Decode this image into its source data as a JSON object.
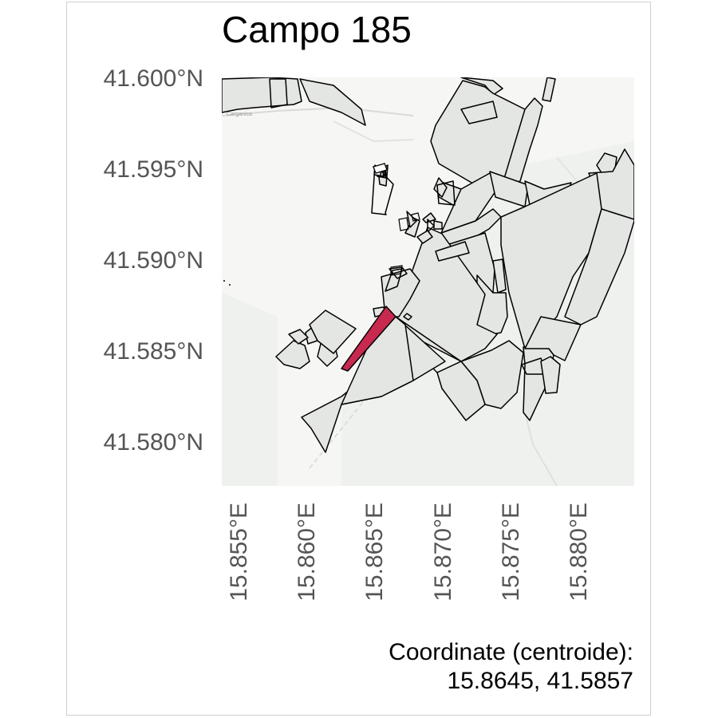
{
  "title": "Campo 185",
  "y_ticks": [
    "41.600°N",
    "41.595°N",
    "41.590°N",
    "41.585°N",
    "41.580°N"
  ],
  "x_ticks": [
    "15.855°E",
    "15.860°E",
    "15.865°E",
    "15.870°E",
    "15.875°E",
    "15.880°E"
  ],
  "caption": {
    "line1": "Coordinate (centroide):",
    "line2": "15.8645, 41.5857"
  },
  "basemap_label": "Carganica",
  "colors": {
    "highlight": "#c8294f",
    "parcel_fill": "#e4e6e3",
    "parcel_stroke": "#000000",
    "basemap": "#f6f6f4",
    "basemap_green": "#eef1ee",
    "tick_text": "#555555"
  }
}
